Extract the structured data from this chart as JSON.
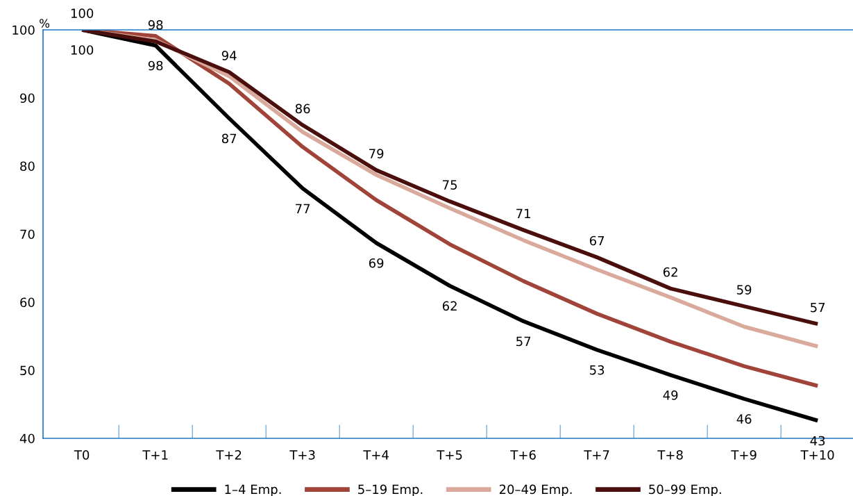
{
  "chart_data": {
    "type": "line",
    "ylabel": "%",
    "categories": [
      "T0",
      "T+1",
      "T+2",
      "T+3",
      "T+4",
      "T+5",
      "T+6",
      "T+7",
      "T+8",
      "T+9",
      "T+10"
    ],
    "series": [
      {
        "name": "1–4 Emp.",
        "color": "#000000",
        "values": [
          100,
          97.7,
          87.0,
          76.7,
          68.7,
          62.4,
          57.2,
          53.0,
          49.3,
          45.8,
          42.6
        ],
        "value_labels": [
          "100",
          "98",
          "87",
          "77",
          "69",
          "62",
          "57",
          "53",
          "49",
          "46",
          "43"
        ]
      },
      {
        "name": "5–19 Emp.",
        "color": "#a0443a",
        "values": [
          100,
          99.1,
          92.1,
          82.8,
          75.0,
          68.5,
          63.1,
          58.3,
          54.2,
          50.6,
          47.7
        ]
      },
      {
        "name": "20–49 Emp.",
        "color": "#d9aa9c",
        "values": [
          100,
          98.5,
          93.2,
          85.0,
          78.7,
          73.8,
          69.1,
          64.8,
          60.7,
          56.4,
          53.5
        ]
      },
      {
        "name": "50–99 Emp.",
        "color": "#4a0f0c",
        "values": [
          100,
          98.3,
          93.8,
          86,
          79.4,
          74.8,
          70.6,
          66.6,
          62,
          59.4,
          56.8
        ],
        "value_labels": [
          "100",
          "98",
          "94",
          "86",
          "79",
          "75",
          "71",
          "67",
          "62",
          "59",
          "57"
        ]
      }
    ],
    "ylim": [
      40,
      100
    ],
    "yticks": [
      40,
      50,
      60,
      70,
      80,
      90,
      100
    ],
    "grid": false,
    "legend": "bottom",
    "line_style": "solid",
    "marker": "none"
  }
}
